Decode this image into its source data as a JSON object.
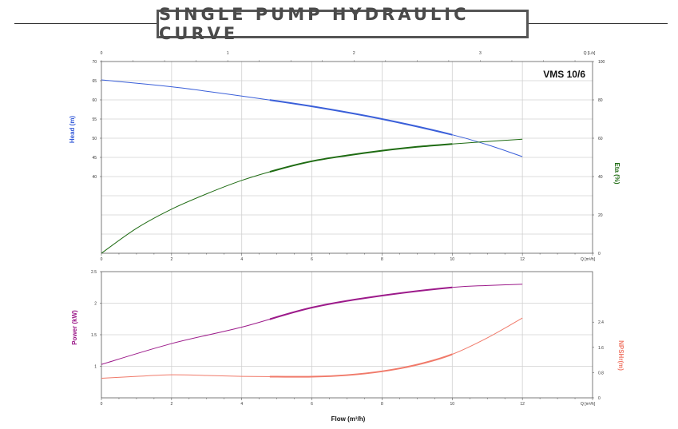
{
  "title": "SINGLE PUMP HYDRAULIC CURVE",
  "model_label": "VMS 10/6",
  "colors": {
    "head": "#3a5fd9",
    "eta": "#1e6b12",
    "power": "#9c1a8a",
    "npsh": "#f07a6a",
    "frame": "#444444",
    "grid": "#d0d0d0"
  },
  "chart_data": [
    {
      "type": "line",
      "title": "VMS 10/6",
      "xlabel": "Q [m³/h]",
      "xlim": [
        0,
        14
      ],
      "x_ticks": [
        0,
        2,
        4,
        6,
        8,
        10,
        12
      ],
      "x_tick_labels": [
        "0",
        "2",
        "4",
        "6",
        "8",
        "10",
        "12"
      ],
      "x_unit_label": "Q [m³/h]",
      "top_axis": {
        "label": "Q [L/s]",
        "ticks_m3h": [
          0,
          3.6,
          7.2,
          10.8
        ],
        "tick_labels": [
          "0",
          "1",
          "2",
          "3"
        ]
      },
      "y_left": {
        "label": "Head (m)",
        "lim": [
          20,
          70
        ],
        "ticks": [
          40,
          45,
          50,
          55,
          60,
          65,
          70
        ],
        "tick_labels": [
          "40",
          "45",
          "50",
          "55",
          "60",
          "65",
          "70"
        ]
      },
      "y_right": {
        "label": "Eta (%)",
        "lim": [
          0,
          100
        ],
        "ticks": [
          0,
          20,
          40,
          60,
          80,
          100
        ],
        "tick_labels": [
          "0",
          "20",
          "40",
          "60",
          "80",
          "100"
        ]
      },
      "series": [
        {
          "name": "Head (m)",
          "axis": "left",
          "x": [
            0,
            2,
            4,
            6,
            8,
            10,
            11,
            12
          ],
          "y": [
            65.2,
            63.4,
            61.0,
            58.3,
            55.0,
            50.9,
            48.3,
            45.2
          ]
        },
        {
          "name": "Eta (%)",
          "axis": "right",
          "x": [
            0,
            1,
            2,
            3,
            4,
            5,
            6,
            7,
            8,
            9,
            10,
            11,
            12
          ],
          "y": [
            0,
            13,
            23,
            31,
            38,
            43.5,
            48,
            51,
            53.5,
            55.5,
            57,
            58.3,
            59.5
          ]
        }
      ]
    },
    {
      "type": "line",
      "xlabel": "Flow (m³/h)",
      "xlim": [
        0,
        14
      ],
      "x_ticks": [
        0,
        2,
        4,
        6,
        8,
        10,
        12
      ],
      "x_tick_labels": [
        "0",
        "2",
        "4",
        "6",
        "8",
        "10",
        "12"
      ],
      "x_unit_label": "Q [m³/h]",
      "y_left": {
        "label": "Power (kW)",
        "lim": [
          0.5,
          2.5
        ],
        "ticks": [
          1,
          1.5,
          2,
          2.5
        ],
        "tick_labels": [
          "1",
          "1.5",
          "2",
          "2.5"
        ]
      },
      "y_right": {
        "label": "NPSHr(m)",
        "lim": [
          0,
          4
        ],
        "ticks": [
          0,
          0.8,
          1.6,
          2.4
        ],
        "tick_labels": [
          "0",
          "0.8",
          "1.6",
          "2.4"
        ]
      },
      "series": [
        {
          "name": "Power (kW)",
          "axis": "left",
          "x": [
            0,
            2,
            4,
            6,
            8,
            10,
            11,
            12
          ],
          "y": [
            1.03,
            1.36,
            1.62,
            1.93,
            2.12,
            2.25,
            2.28,
            2.3
          ]
        },
        {
          "name": "NPSHr(m)",
          "axis": "right",
          "x": [
            0,
            1,
            2,
            3,
            4,
            5,
            6,
            7,
            8,
            9,
            10,
            11,
            12
          ],
          "y": [
            0.62,
            0.68,
            0.73,
            0.71,
            0.68,
            0.67,
            0.67,
            0.72,
            0.84,
            1.05,
            1.38,
            1.9,
            2.53
          ]
        }
      ]
    }
  ]
}
